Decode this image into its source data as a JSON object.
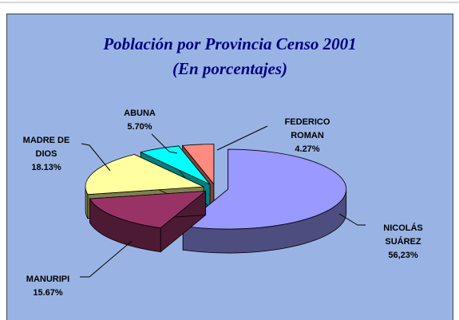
{
  "chart_data": {
    "type": "pie",
    "title": "Población por Provincia Censo 2001",
    "subtitle": "(En porcentajes)",
    "categories": [
      "NICOLÁS SUÁREZ",
      "MANURIPI",
      "MADRE DE DIOS",
      "ABUNA",
      "FEDERICO ROMAN"
    ],
    "values": [
      56.23,
      15.67,
      18.13,
      5.7,
      4.27
    ],
    "value_labels": [
      "56,23%",
      "15.67%",
      "18.13%",
      "5.70%",
      "4.27%"
    ],
    "colors": [
      "#9999ff",
      "#993366",
      "#ffffa0",
      "#00ffff",
      "#ff8a80"
    ]
  }
}
